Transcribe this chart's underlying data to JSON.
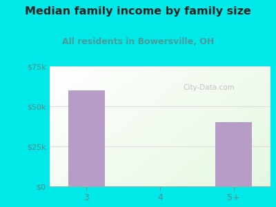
{
  "title": "Median family income by family size",
  "subtitle": "All residents in Bowersville, OH",
  "categories": [
    "3",
    "4",
    "5+"
  ],
  "values": [
    60000,
    0,
    40000
  ],
  "bar_color": "#b89cc8",
  "title_color": "#222222",
  "subtitle_color": "#4a9a9a",
  "bg_color": "#00e8e8",
  "ylim": [
    0,
    75000
  ],
  "yticks": [
    0,
    25000,
    50000,
    75000
  ],
  "ytick_labels": [
    "$0",
    "$25k",
    "$50k",
    "$75k"
  ],
  "watermark": "City-Data.com",
  "bar_width": 0.5,
  "tick_label_color": "#5a8a8a",
  "grid_color": "#dddddd"
}
